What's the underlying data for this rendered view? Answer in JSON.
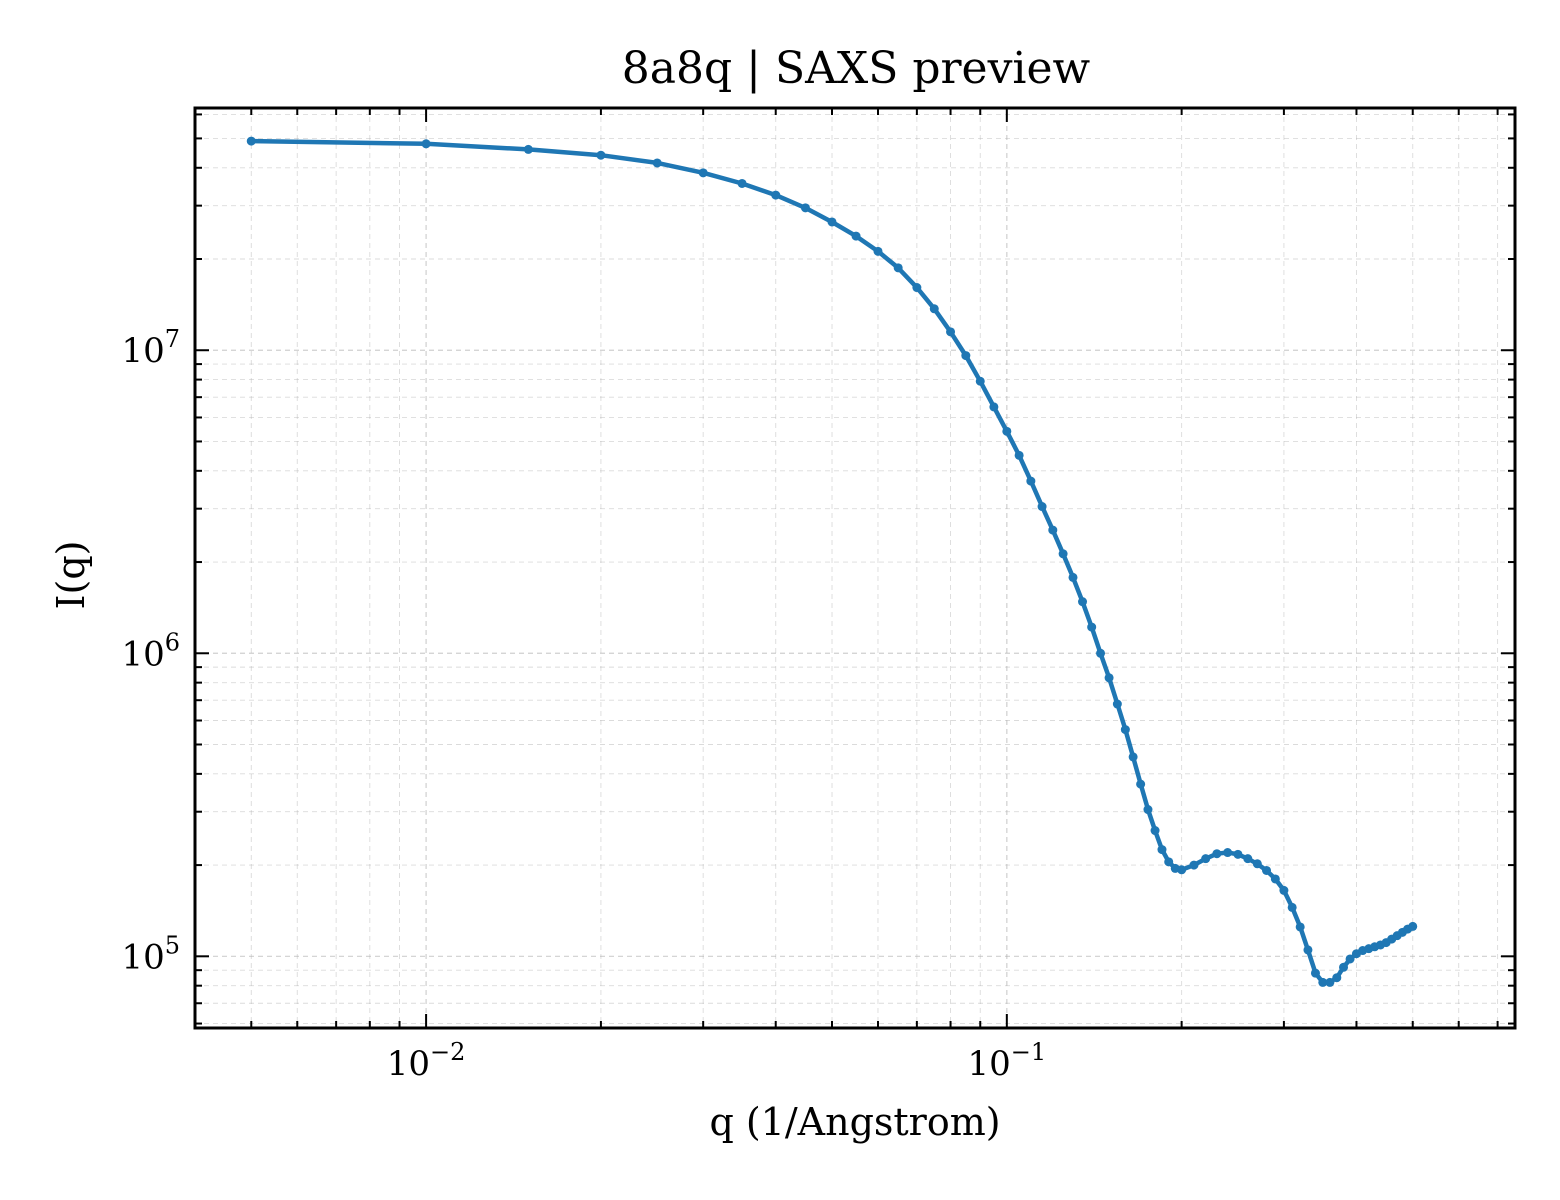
{
  "chart_data": {
    "type": "line",
    "title": "8a8q | SAXS preview",
    "xlabel": "q (1/Angstrom)",
    "ylabel": "I(q)",
    "xscale": "log",
    "yscale": "log",
    "xlim": [
      0.004,
      0.75
    ],
    "ylim": [
      58000,
      63000000
    ],
    "grid": true,
    "x_major_ticks": [
      {
        "value": 0.01,
        "base": "10",
        "exp": "−2"
      },
      {
        "value": 0.1,
        "base": "10",
        "exp": "−1"
      }
    ],
    "y_major_ticks": [
      {
        "value": 100000,
        "base": "10",
        "exp": "5"
      },
      {
        "value": 1000000,
        "base": "10",
        "exp": "6"
      },
      {
        "value": 10000000,
        "base": "10",
        "exp": "7"
      }
    ],
    "line_color": "#1f77b4",
    "series": [
      {
        "x": [
          0.005,
          0.01,
          0.015,
          0.02,
          0.025,
          0.03,
          0.035,
          0.04,
          0.045,
          0.05,
          0.055,
          0.06,
          0.065,
          0.07,
          0.075,
          0.08,
          0.085,
          0.09,
          0.095,
          0.1,
          0.105,
          0.11,
          0.115,
          0.12,
          0.125,
          0.13,
          0.135,
          0.14,
          0.145,
          0.15,
          0.155,
          0.16,
          0.165,
          0.17,
          0.175,
          0.18,
          0.185,
          0.19,
          0.195,
          0.2,
          0.21,
          0.22,
          0.23,
          0.24,
          0.25,
          0.26,
          0.27,
          0.28,
          0.29,
          0.3,
          0.31,
          0.32,
          0.33,
          0.34,
          0.35,
          0.36,
          0.37,
          0.38,
          0.39,
          0.4,
          0.41,
          0.42,
          0.43,
          0.44,
          0.45,
          0.46,
          0.47,
          0.48,
          0.49,
          0.5
        ],
        "y": [
          49000000,
          48000000,
          46000000,
          44000000,
          41500000,
          38500000,
          35500000,
          32500000,
          29500000,
          26500000,
          23800000,
          21200000,
          18700000,
          16100000,
          13700000,
          11500000,
          9600000,
          7900000,
          6500000,
          5400000,
          4500000,
          3700000,
          3050000,
          2550000,
          2130000,
          1780000,
          1480000,
          1220000,
          1000000,
          830000,
          680000,
          560000,
          455000,
          370000,
          305000,
          260000,
          225000,
          205000,
          195000,
          193000,
          200000,
          210000,
          218000,
          220000,
          217000,
          210000,
          202000,
          192000,
          180000,
          165000,
          145000,
          125000,
          105000,
          88000,
          82000,
          82000,
          85000,
          92000,
          98000,
          102000,
          104500,
          106000,
          107500,
          109000,
          111000,
          114000,
          117000,
          120000,
          123000,
          125500
        ]
      }
    ]
  }
}
